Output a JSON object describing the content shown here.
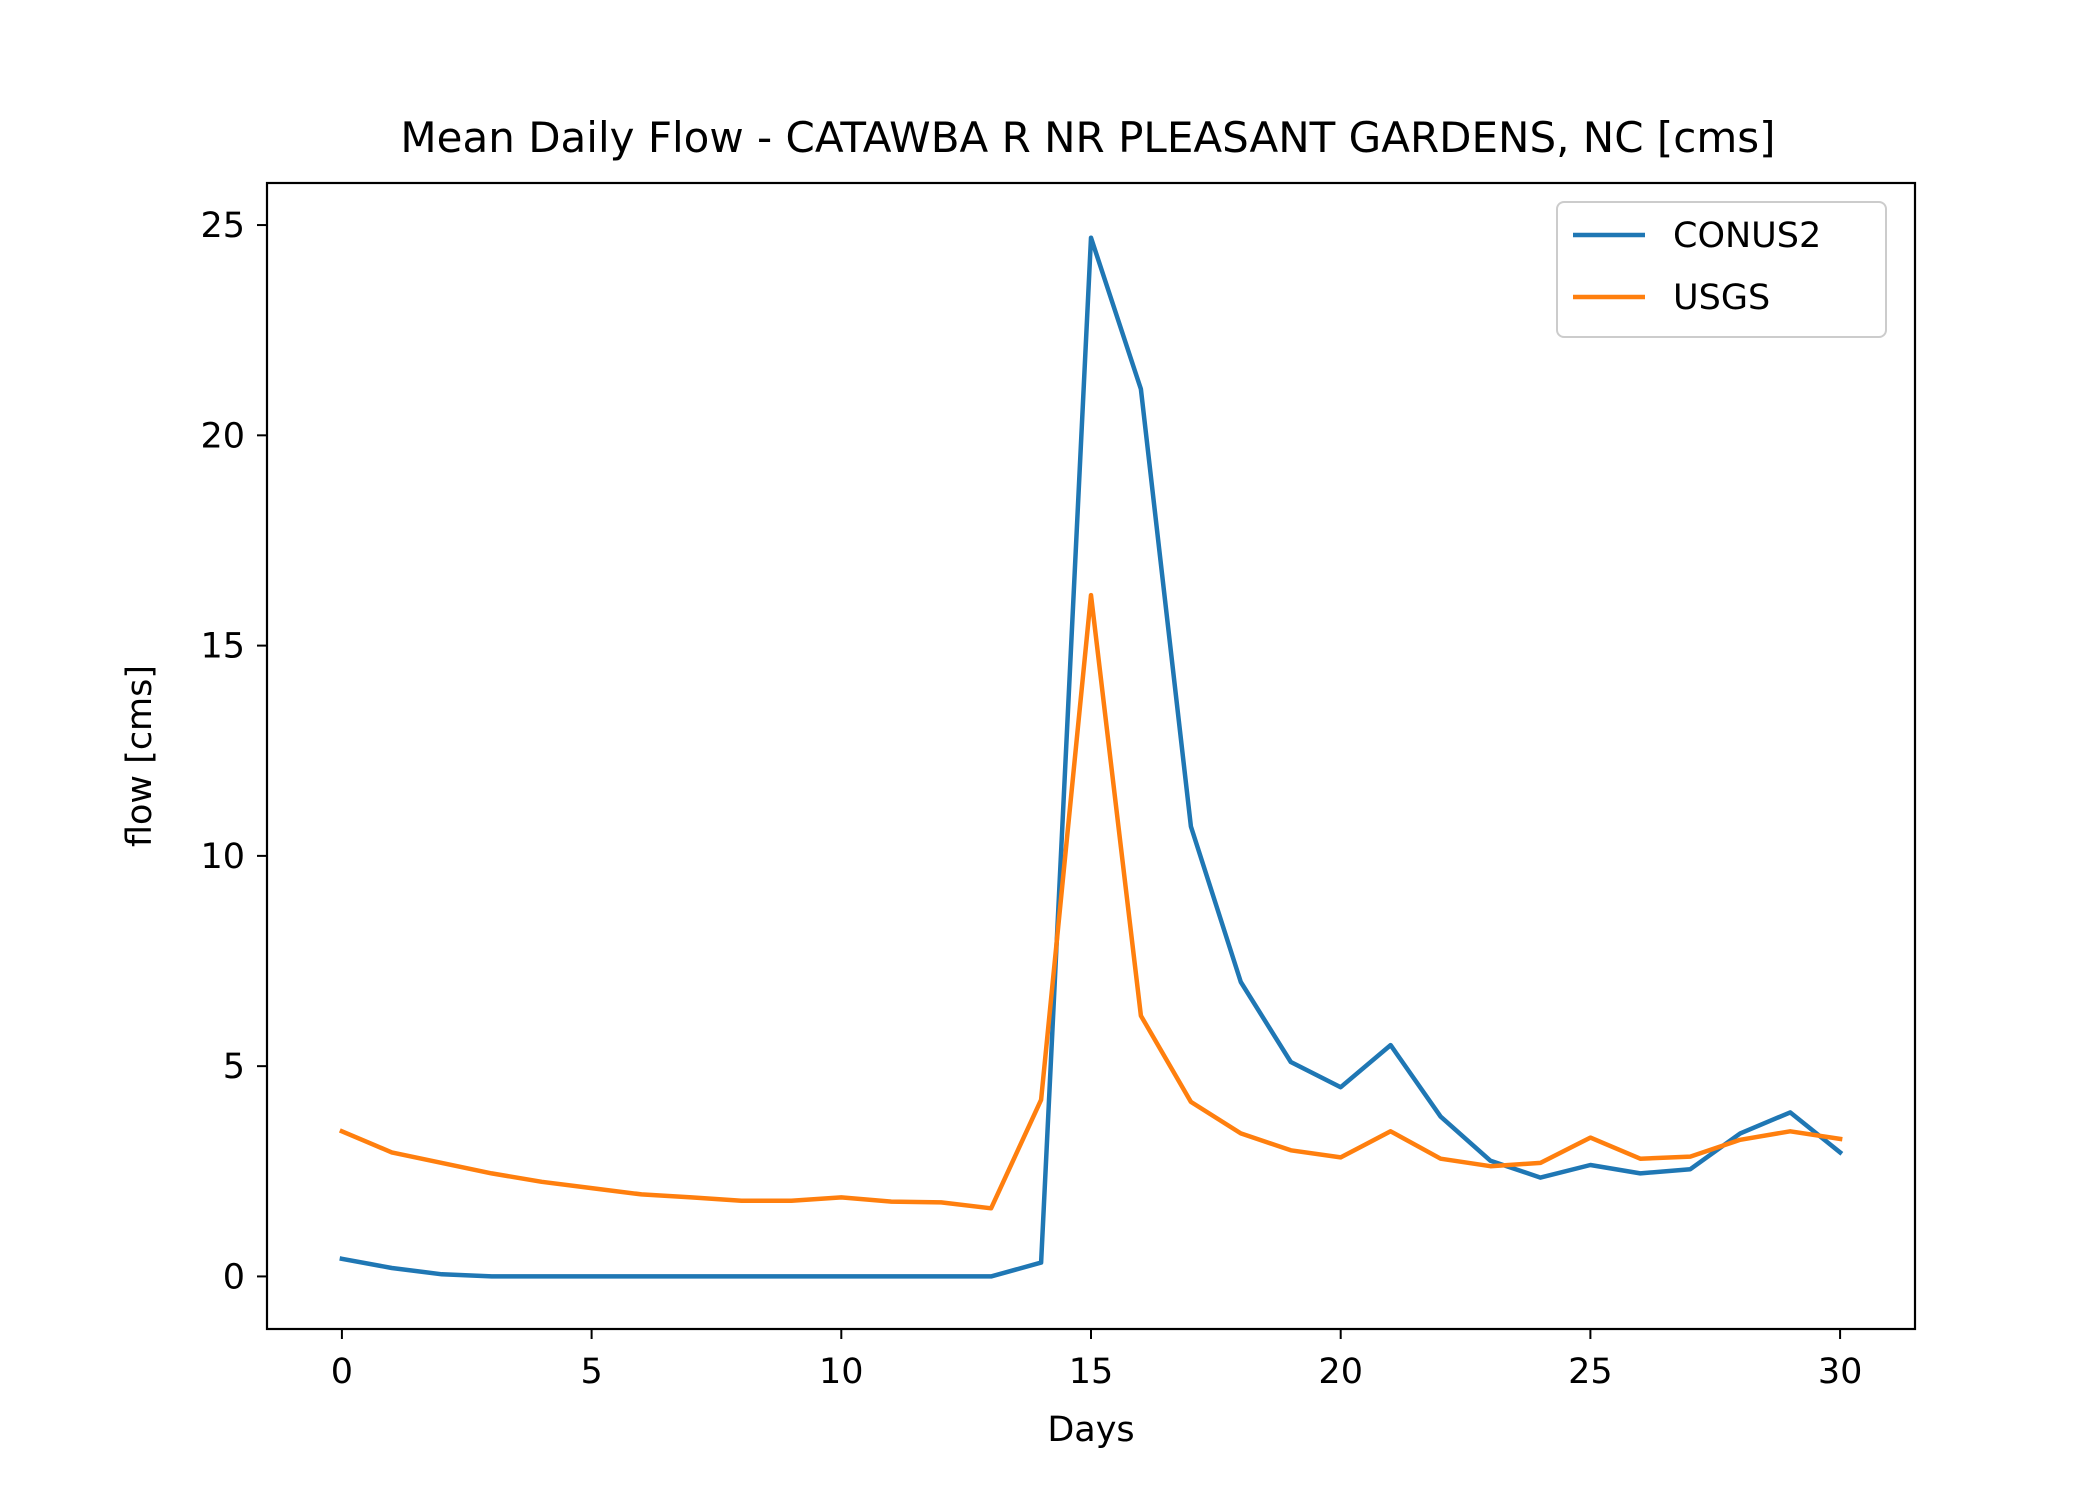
{
  "chart_data": {
    "type": "line",
    "title": "Mean Daily Flow - CATAWBA R NR PLEASANT GARDENS, NC [cms]",
    "xlabel": "Days",
    "ylabel": "flow [cms]",
    "xlim": [
      -1.5,
      31.5
    ],
    "ylim": [
      -1.25,
      26.0
    ],
    "xticks": [
      0,
      5,
      10,
      15,
      20,
      25,
      30
    ],
    "yticks": [
      0,
      5,
      10,
      15,
      20,
      25
    ],
    "grid": false,
    "legend_position": "upper right",
    "x": [
      0,
      1,
      2,
      3,
      4,
      5,
      6,
      7,
      8,
      9,
      10,
      11,
      12,
      13,
      14,
      15,
      16,
      17,
      18,
      19,
      20,
      21,
      22,
      23,
      24,
      25,
      26,
      27,
      28,
      29,
      30
    ],
    "series": [
      {
        "name": "CONUS2",
        "color": "#1f77b4",
        "values": [
          0.42,
          0.2,
          0.05,
          0.0,
          0.0,
          0.0,
          0.0,
          0.0,
          0.0,
          0.0,
          0.0,
          0.0,
          0.0,
          0.0,
          0.33,
          24.7,
          21.1,
          10.7,
          7.0,
          5.1,
          4.5,
          5.5,
          3.8,
          2.75,
          2.35,
          2.65,
          2.45,
          2.55,
          3.4,
          3.9,
          2.95
        ]
      },
      {
        "name": "USGS",
        "color": "#ff7f0e",
        "values": [
          3.45,
          2.95,
          2.7,
          2.45,
          2.25,
          2.1,
          1.95,
          1.88,
          1.8,
          1.8,
          1.88,
          1.78,
          1.76,
          1.62,
          4.2,
          16.2,
          6.2,
          4.15,
          3.4,
          3.0,
          2.83,
          3.45,
          2.8,
          2.62,
          2.7,
          3.3,
          2.8,
          2.85,
          3.25,
          3.45,
          3.27
        ]
      }
    ]
  }
}
